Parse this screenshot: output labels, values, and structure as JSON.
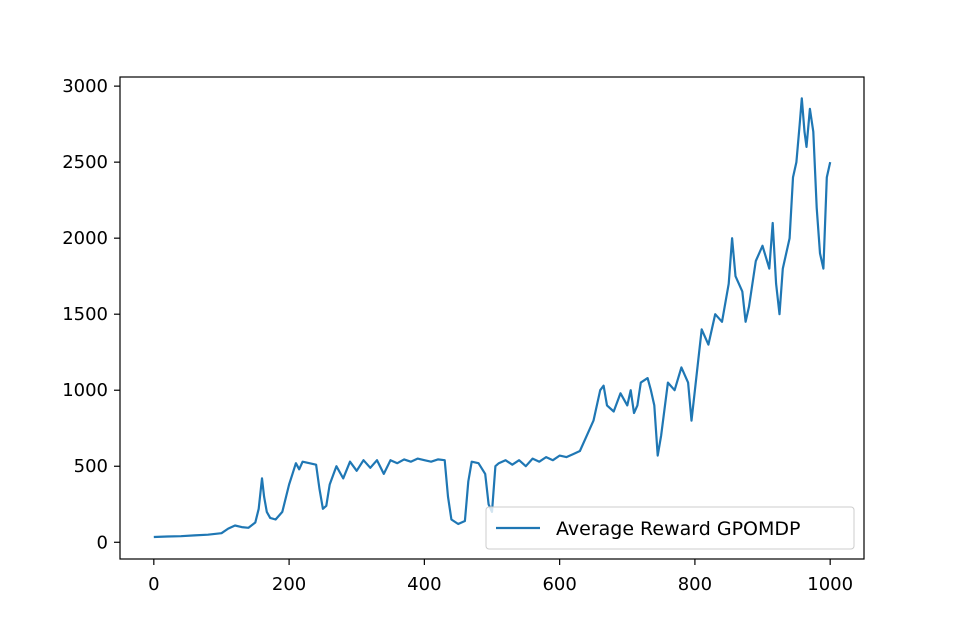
{
  "chart_data": {
    "type": "line",
    "title": "",
    "xlabel": "",
    "ylabel": "",
    "xlim": [
      -50,
      1050
    ],
    "ylim": [
      -110,
      3060
    ],
    "x_ticks": [
      0,
      200,
      400,
      600,
      800,
      1000
    ],
    "y_ticks": [
      0,
      500,
      1000,
      1500,
      2000,
      2500,
      3000
    ],
    "x_tick_labels": [
      "0",
      "200",
      "400",
      "600",
      "800",
      "1000"
    ],
    "y_tick_labels": [
      "0",
      "500",
      "1000",
      "1500",
      "2000",
      "2500",
      "3000"
    ],
    "grid": false,
    "legend_position": "lower-right",
    "series": [
      {
        "name": "Average Reward GPOMDP",
        "color": "#1f77b4",
        "points": [
          [
            0,
            35
          ],
          [
            20,
            38
          ],
          [
            40,
            40
          ],
          [
            60,
            45
          ],
          [
            80,
            50
          ],
          [
            100,
            60
          ],
          [
            110,
            90
          ],
          [
            120,
            110
          ],
          [
            130,
            100
          ],
          [
            140,
            95
          ],
          [
            150,
            130
          ],
          [
            155,
            220
          ],
          [
            160,
            420
          ],
          [
            163,
            300
          ],
          [
            167,
            200
          ],
          [
            172,
            160
          ],
          [
            180,
            150
          ],
          [
            190,
            200
          ],
          [
            200,
            380
          ],
          [
            205,
            450
          ],
          [
            210,
            520
          ],
          [
            215,
            480
          ],
          [
            220,
            530
          ],
          [
            230,
            520
          ],
          [
            240,
            510
          ],
          [
            245,
            350
          ],
          [
            250,
            220
          ],
          [
            255,
            240
          ],
          [
            260,
            380
          ],
          [
            270,
            500
          ],
          [
            280,
            420
          ],
          [
            290,
            530
          ],
          [
            300,
            470
          ],
          [
            310,
            540
          ],
          [
            320,
            490
          ],
          [
            330,
            540
          ],
          [
            340,
            450
          ],
          [
            350,
            540
          ],
          [
            360,
            520
          ],
          [
            370,
            545
          ],
          [
            380,
            530
          ],
          [
            390,
            550
          ],
          [
            400,
            540
          ],
          [
            410,
            530
          ],
          [
            420,
            545
          ],
          [
            430,
            540
          ],
          [
            435,
            300
          ],
          [
            440,
            150
          ],
          [
            450,
            120
          ],
          [
            460,
            140
          ],
          [
            465,
            400
          ],
          [
            470,
            530
          ],
          [
            480,
            520
          ],
          [
            490,
            450
          ],
          [
            495,
            250
          ],
          [
            500,
            200
          ],
          [
            505,
            500
          ],
          [
            510,
            520
          ],
          [
            520,
            540
          ],
          [
            530,
            510
          ],
          [
            540,
            540
          ],
          [
            550,
            500
          ],
          [
            560,
            550
          ],
          [
            570,
            530
          ],
          [
            580,
            560
          ],
          [
            590,
            540
          ],
          [
            600,
            570
          ],
          [
            610,
            560
          ],
          [
            620,
            580
          ],
          [
            630,
            600
          ],
          [
            640,
            700
          ],
          [
            650,
            800
          ],
          [
            660,
            1000
          ],
          [
            665,
            1030
          ],
          [
            670,
            900
          ],
          [
            680,
            860
          ],
          [
            690,
            980
          ],
          [
            700,
            900
          ],
          [
            705,
            1000
          ],
          [
            710,
            850
          ],
          [
            715,
            900
          ],
          [
            720,
            1050
          ],
          [
            730,
            1080
          ],
          [
            735,
            1000
          ],
          [
            740,
            900
          ],
          [
            745,
            570
          ],
          [
            750,
            700
          ],
          [
            760,
            1050
          ],
          [
            770,
            1000
          ],
          [
            780,
            1150
          ],
          [
            790,
            1050
          ],
          [
            795,
            800
          ],
          [
            800,
            1000
          ],
          [
            805,
            1200
          ],
          [
            810,
            1400
          ],
          [
            820,
            1300
          ],
          [
            830,
            1500
          ],
          [
            840,
            1450
          ],
          [
            850,
            1700
          ],
          [
            855,
            2000
          ],
          [
            860,
            1750
          ],
          [
            870,
            1650
          ],
          [
            875,
            1450
          ],
          [
            880,
            1550
          ],
          [
            890,
            1850
          ],
          [
            900,
            1950
          ],
          [
            910,
            1800
          ],
          [
            915,
            2100
          ],
          [
            920,
            1700
          ],
          [
            925,
            1500
          ],
          [
            930,
            1800
          ],
          [
            940,
            2000
          ],
          [
            945,
            2400
          ],
          [
            950,
            2500
          ],
          [
            955,
            2750
          ],
          [
            958,
            2920
          ],
          [
            962,
            2700
          ],
          [
            965,
            2600
          ],
          [
            970,
            2850
          ],
          [
            975,
            2700
          ],
          [
            980,
            2200
          ],
          [
            985,
            1900
          ],
          [
            990,
            1800
          ],
          [
            995,
            2400
          ],
          [
            1000,
            2500
          ]
        ]
      }
    ]
  }
}
